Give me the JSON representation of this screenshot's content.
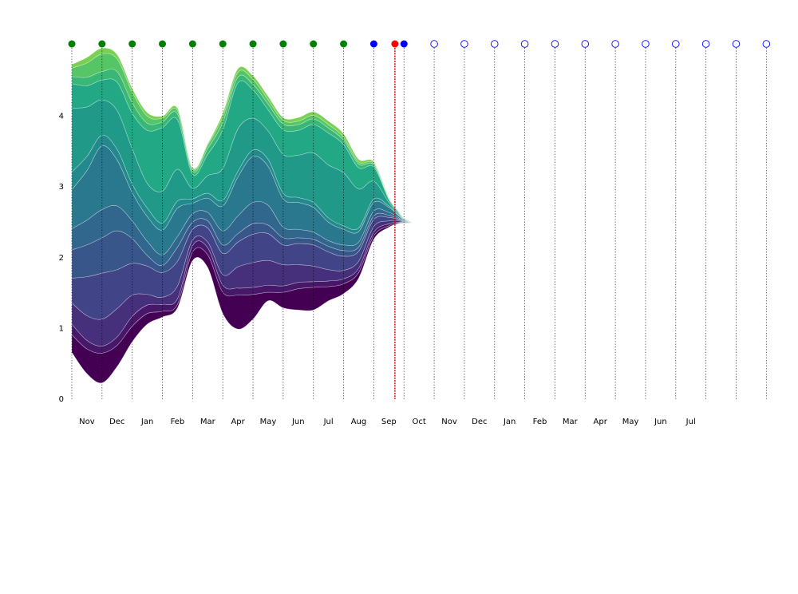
{
  "chart_data": {
    "type": "area",
    "subtype": "streamgraph",
    "title": "",
    "xlabel": "",
    "ylabel": "",
    "ylim": [
      0,
      5
    ],
    "yticks": [
      0,
      1,
      2,
      3,
      4
    ],
    "grid": false,
    "x_tick_labels": [
      "Nov",
      "Dec",
      "Jan",
      "Feb",
      "Mar",
      "Apr",
      "May",
      "Jun",
      "Jul",
      "Aug",
      "Sep",
      "Oct",
      "Nov",
      "Dec",
      "Jan",
      "Feb",
      "Mar",
      "Apr",
      "May",
      "Jun",
      "Jul"
    ],
    "colormap": "viridis",
    "colors": {
      "past_marker": "#008000",
      "recent_marker": "#0000ff",
      "current_marker": "#ff0000",
      "future_marker": "#0000ff",
      "current_line": "#cc0000",
      "divider": "#000000"
    },
    "timeline_markers": [
      {
        "month": 0.0,
        "state": "past"
      },
      {
        "month": 1.0,
        "state": "past"
      },
      {
        "month": 2.0,
        "state": "past"
      },
      {
        "month": 3.0,
        "state": "past"
      },
      {
        "month": 4.0,
        "state": "past"
      },
      {
        "month": 5.0,
        "state": "past"
      },
      {
        "month": 6.0,
        "state": "past"
      },
      {
        "month": 7.0,
        "state": "past"
      },
      {
        "month": 8.0,
        "state": "past"
      },
      {
        "month": 9.0,
        "state": "past"
      },
      {
        "month": 10.0,
        "state": "recent"
      },
      {
        "month": 10.7,
        "state": "current"
      },
      {
        "month": 11.0,
        "state": "recent"
      },
      {
        "month": 12.0,
        "state": "future"
      },
      {
        "month": 13.0,
        "state": "future"
      },
      {
        "month": 14.0,
        "state": "future"
      },
      {
        "month": 15.0,
        "state": "future"
      },
      {
        "month": 16.0,
        "state": "future"
      },
      {
        "month": 17.0,
        "state": "future"
      },
      {
        "month": 18.0,
        "state": "future"
      },
      {
        "month": 19.0,
        "state": "future"
      },
      {
        "month": 20.0,
        "state": "future"
      },
      {
        "month": 21.0,
        "state": "future"
      },
      {
        "month": 22.0,
        "state": "future"
      },
      {
        "month": 23.0,
        "state": "future"
      }
    ],
    "current_month": 10.7,
    "x": [
      0,
      0.5,
      1,
      1.5,
      2,
      2.5,
      3,
      3.5,
      4,
      4.5,
      5,
      5.5,
      6,
      6.5,
      7,
      7.5,
      8,
      8.5,
      9,
      9.5,
      10,
      10.5,
      10.8,
      11.0,
      11.3
    ],
    "baseline": [
      0.65,
      0.35,
      0.22,
      0.45,
      0.8,
      1.05,
      1.15,
      1.28,
      1.95,
      1.85,
      1.2,
      0.98,
      1.12,
      1.38,
      1.28,
      1.25,
      1.25,
      1.38,
      1.48,
      1.7,
      2.25,
      2.42,
      2.47,
      2.48,
      2.48
    ],
    "series": [
      {
        "values": [
          0.25,
          0.35,
          0.42,
          0.3,
          0.22,
          0.15,
          0.08,
          0.05,
          0.12,
          0.18,
          0.3,
          0.48,
          0.35,
          0.12,
          0.22,
          0.3,
          0.32,
          0.2,
          0.14,
          0.08,
          0.05,
          0.02,
          0.01,
          0.005,
          0.0
        ]
      },
      {
        "values": [
          0.15,
          0.12,
          0.1,
          0.12,
          0.14,
          0.12,
          0.1,
          0.08,
          0.09,
          0.1,
          0.1,
          0.1,
          0.1,
          0.1,
          0.09,
          0.09,
          0.08,
          0.08,
          0.07,
          0.06,
          0.05,
          0.03,
          0.01,
          0.005,
          0.0
        ]
      },
      {
        "values": [
          0.3,
          0.35,
          0.38,
          0.4,
          0.3,
          0.15,
          0.1,
          0.18,
          0.08,
          0.08,
          0.15,
          0.3,
          0.35,
          0.35,
          0.3,
          0.25,
          0.22,
          0.16,
          0.12,
          0.1,
          0.08,
          0.04,
          0.02,
          0.005,
          0.0
        ]
      },
      {
        "values": [
          0.35,
          0.55,
          0.65,
          0.55,
          0.45,
          0.4,
          0.35,
          0.35,
          0.15,
          0.2,
          0.3,
          0.35,
          0.4,
          0.38,
          0.28,
          0.3,
          0.3,
          0.25,
          0.2,
          0.14,
          0.1,
          0.05,
          0.02,
          0.005,
          0.0
        ]
      },
      {
        "values": [
          0.4,
          0.45,
          0.5,
          0.55,
          0.35,
          0.15,
          0.1,
          0.2,
          0.1,
          0.1,
          0.12,
          0.12,
          0.15,
          0.12,
          0.1,
          0.08,
          0.08,
          0.08,
          0.08,
          0.06,
          0.05,
          0.03,
          0.01,
          0.005,
          0.0
        ]
      },
      {
        "values": [
          0.3,
          0.35,
          0.4,
          0.35,
          0.25,
          0.2,
          0.15,
          0.15,
          0.12,
          0.12,
          0.2,
          0.25,
          0.3,
          0.28,
          0.15,
          0.12,
          0.1,
          0.08,
          0.08,
          0.07,
          0.07,
          0.04,
          0.02,
          0.005,
          0.0
        ]
      },
      {
        "values": [
          0.55,
          0.7,
          0.9,
          0.65,
          0.4,
          0.35,
          0.35,
          0.4,
          0.15,
          0.2,
          0.35,
          0.55,
          0.65,
          0.55,
          0.4,
          0.38,
          0.35,
          0.26,
          0.22,
          0.15,
          0.12,
          0.07,
          0.03,
          0.01,
          0.0
        ]
      },
      {
        "values": [
          0.25,
          0.2,
          0.15,
          0.15,
          0.12,
          0.12,
          0.1,
          0.1,
          0.06,
          0.07,
          0.08,
          0.08,
          0.09,
          0.1,
          0.08,
          0.07,
          0.07,
          0.06,
          0.05,
          0.05,
          0.05,
          0.02,
          0.01,
          0.005,
          0.0
        ]
      },
      {
        "values": [
          0.9,
          0.7,
          0.5,
          0.55,
          0.5,
          0.35,
          0.45,
          0.45,
          0.15,
          0.25,
          0.45,
          0.6,
          0.45,
          0.4,
          0.55,
          0.6,
          0.7,
          0.75,
          0.75,
          0.55,
          0.25,
          0.05,
          0.02,
          0.005,
          0.0
        ]
      },
      {
        "values": [
          0.35,
          0.3,
          0.28,
          0.4,
          0.5,
          0.75,
          0.9,
          0.7,
          0.2,
          0.3,
          0.55,
          0.65,
          0.4,
          0.3,
          0.35,
          0.35,
          0.4,
          0.45,
          0.4,
          0.3,
          0.2,
          0.04,
          0.02,
          0.005,
          0.0
        ]
      },
      {
        "values": [
          0.1,
          0.12,
          0.12,
          0.15,
          0.15,
          0.1,
          0.08,
          0.08,
          0.04,
          0.08,
          0.1,
          0.08,
          0.08,
          0.08,
          0.08,
          0.08,
          0.08,
          0.07,
          0.06,
          0.05,
          0.03,
          0.01,
          0.005,
          0.005,
          0.0
        ]
      },
      {
        "values": [
          0.12,
          0.2,
          0.25,
          0.18,
          0.15,
          0.1,
          0.05,
          0.05,
          0.03,
          0.05,
          0.08,
          0.07,
          0.07,
          0.06,
          0.05,
          0.05,
          0.05,
          0.05,
          0.04,
          0.03,
          0.02,
          0.01,
          0.005,
          0.005,
          0.0
        ]
      },
      {
        "values": [
          0.05,
          0.08,
          0.08,
          0.06,
          0.05,
          0.05,
          0.03,
          0.03,
          0.02,
          0.02,
          0.05,
          0.05,
          0.05,
          0.05,
          0.04,
          0.05,
          0.05,
          0.05,
          0.05,
          0.04,
          0.02,
          0.01,
          0.005,
          0.005,
          0.0
        ]
      }
    ]
  }
}
